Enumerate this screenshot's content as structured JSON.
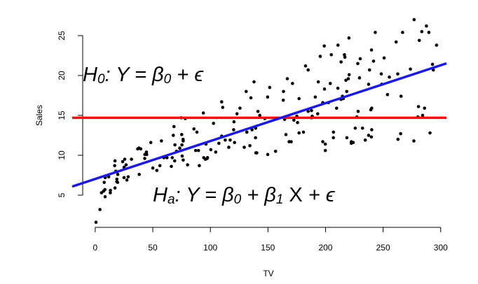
{
  "chart_data": {
    "type": "scatter",
    "x_label": "TV",
    "y_label": "Sales",
    "xlim": [
      -20,
      305
    ],
    "ylim": [
      1,
      28.5
    ],
    "xticks": [
      0,
      50,
      100,
      150,
      200,
      250,
      300
    ],
    "yticks": [
      5,
      10,
      15,
      20,
      25
    ],
    "color": "#000000",
    "x": [
      230.1,
      44.5,
      17.2,
      151.5,
      180.8,
      8.7,
      57.5,
      120.2,
      8.6,
      199.8,
      66.1,
      214.7,
      23.8,
      97.5,
      204.1,
      195.4,
      67.8,
      281.4,
      69.2,
      147.3,
      218.4,
      237.4,
      13.2,
      228.3,
      62.3,
      262.9,
      142.9,
      240.1,
      248.8,
      70.6,
      292.9,
      112.9,
      97.2,
      265.6,
      95.7,
      290.7,
      266.9,
      74.7,
      43.1,
      228,
      202.5,
      177,
      293.6,
      206.9,
      25.1,
      175.1,
      89.7,
      239.9,
      227.2,
      66.9,
      199.8,
      100.4,
      216.4,
      182.6,
      262.7,
      198.9,
      7.3,
      136.2,
      210.8,
      210.7,
      53.5,
      261.3,
      239.3,
      102.7,
      131.1,
      69,
      31.5,
      139.3,
      237.4,
      216.8,
      199.1,
      109.8,
      26.8,
      129.4,
      213.4,
      16.9,
      27.5,
      120.5,
      5.4,
      116,
      76.4,
      239.8,
      75.3,
      68.4,
      213.5,
      193.2,
      76.3,
      110.7,
      88.3,
      109.8,
      134.3,
      28.6,
      217.7,
      250.9,
      107.4,
      163.3,
      197.6,
      184.9,
      289.7,
      135.2,
      222.4,
      296.4,
      280.2,
      187.9,
      238.2,
      137.9,
      25,
      90.4,
      13.1,
      255.4,
      225.8,
      241.7,
      175.7,
      209.6,
      78.2,
      75.1,
      139.2,
      76.4,
      125.7,
      19.4,
      141.3,
      18.8,
      224,
      123.1,
      229.5,
      87.2,
      7.8,
      80.2,
      220.3,
      59.6,
      0.7,
      265.2,
      8.4,
      219.8,
      36.9,
      48.3,
      25.6,
      273.7,
      43,
      184.9,
      73.4,
      193.7,
      220.5,
      104.6,
      96.2,
      140.3,
      240.1,
      243.2,
      38,
      44.7,
      280.7,
      121,
      197.6,
      171.3,
      187.8,
      4.1,
      93.9,
      149.8,
      11.7,
      131.7,
      172.5,
      85.7,
      188.4,
      163.5,
      117.2,
      234.5,
      17.9,
      206.8,
      215.4,
      284.3,
      50,
      164.5,
      19.6,
      168.4,
      222.4,
      276.9,
      248.4,
      170.2,
      276.7,
      165.6,
      156.6,
      218.5,
      56.2,
      287.6,
      253.8,
      205,
      139.5,
      191.1,
      286,
      18.7,
      39.5,
      75.5,
      17.2,
      166.8,
      149.7,
      38.2,
      94.2,
      177,
      283.6,
      232.1
    ],
    "values": [
      22.1,
      10.4,
      9.3,
      18.5,
      12.9,
      7.2,
      11.8,
      13.2,
      4.8,
      10.6,
      8.6,
      17.4,
      9.2,
      9.7,
      19,
      22.4,
      12.5,
      24.4,
      11.3,
      14.6,
      18,
      12.5,
      5.6,
      15.5,
      9.7,
      12,
      15,
      15.9,
      18.9,
      10.5,
      21.4,
      11.9,
      9.6,
      17.4,
      9.5,
      12.8,
      25.4,
      14.7,
      10.1,
      21.5,
      16.6,
      17.1,
      20.7,
      12.9,
      8.5,
      14.9,
      10.6,
      23.2,
      14.8,
      9.7,
      11.4,
      10.7,
      22.6,
      21.2,
      20.2,
      23.7,
      5.5,
      13.2,
      23.8,
      18.4,
      8.1,
      24.2,
      15.7,
      14,
      18,
      9.3,
      9.5,
      13.4,
      18.9,
      22.3,
      18.3,
      12.4,
      8.8,
      11,
      17,
      8.7,
      6.9,
      14.2,
      5.3,
      11,
      11.8,
      12.3,
      11.3,
      13.6,
      21.7,
      15.2,
      12,
      16,
      12.9,
      16.7,
      11.2,
      7.3,
      19.4,
      22.2,
      11.5,
      16.9,
      11.7,
      15.5,
      25.4,
      17.2,
      11.7,
      23.8,
      14.8,
      14.7,
      20.7,
      19.2,
      7.2,
      8.7,
      5.3,
      19.8,
      13.4,
      21.8,
      14.1,
      15.9,
      14.6,
      12.6,
      12.2,
      9.4,
      15.9,
      6.6,
      15.5,
      7,
      11.6,
      15.2,
      19.7,
      10.6,
      6.6,
      8.8,
      24.7,
      9.7,
      1.6,
      12.7,
      5.7,
      19.6,
      10.8,
      11.6,
      9.5,
      20.8,
      9.6,
      20.7,
      10.9,
      19.2,
      20.1,
      10.4,
      11.4,
      10.3,
      13.2,
      25.4,
      10.9,
      10.1,
      16.1,
      11.6,
      16.6,
      19,
      15.6,
      3.2,
      15.3,
      10.1,
      7.3,
      12.9,
      14.4,
      13.3,
      14.9,
      18,
      11.9,
      11.9,
      8,
      12.2,
      17.1,
      15,
      8.4,
      14.5,
      7.6,
      11.7,
      11.5,
      27,
      20.2,
      11.7,
      11.8,
      12.6,
      10.5,
      12.2,
      8.7,
      26.2,
      17.6,
      22.6,
      10.3,
      17.3,
      15.9,
      6.7,
      10.8,
      9.9,
      5.9,
      19.6,
      17.3,
      7.6,
      9.7,
      12.8,
      25.5,
      13.4
    ],
    "lines": [
      {
        "intercept": 14.7,
        "slope": 0,
        "color": "#ee1111"
      },
      {
        "intercept": 7.03,
        "slope": 0.0475,
        "color": "#1a1ae0"
      }
    ],
    "annotations": [
      {
        "color": "#ee1111",
        "parts": [
          {
            "text": "H"
          },
          {
            "text": "0",
            "sub": true
          },
          {
            "text": ": Y = β"
          },
          {
            "text": "0",
            "sub": true
          },
          {
            "text": " + ϵ"
          }
        ]
      },
      {
        "color": "#1a1ae0",
        "parts": [
          {
            "text": "H"
          },
          {
            "text": "a",
            "sub": true
          },
          {
            "text": ": Y = β"
          },
          {
            "text": "0",
            "sub": true
          },
          {
            "text": " + β"
          },
          {
            "text": "1",
            "sub": true
          },
          {
            "text": " X",
            "upright": true
          },
          {
            "text": " + ϵ"
          }
        ]
      }
    ]
  }
}
